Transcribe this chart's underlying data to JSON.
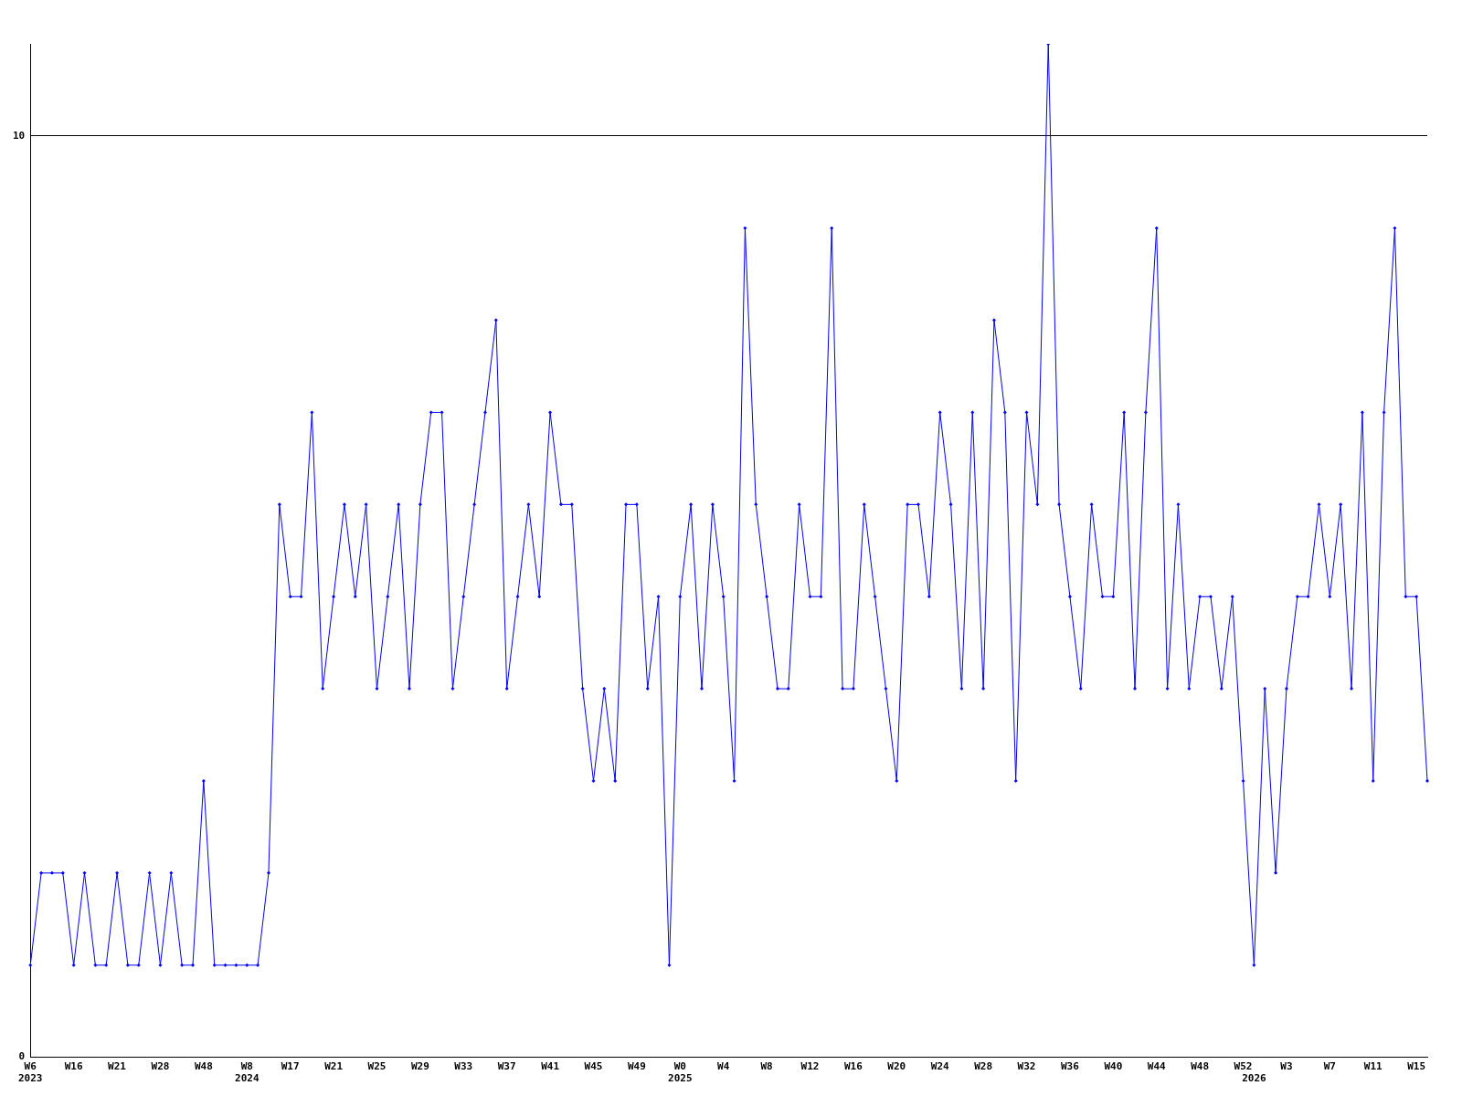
{
  "chart_data": {
    "type": "line",
    "categories": [
      "W6\n2023",
      null,
      null,
      null,
      "W16",
      null,
      null,
      null,
      "W21",
      null,
      null,
      null,
      "W28",
      null,
      null,
      null,
      "W48",
      null,
      null,
      null,
      "W8\n2024",
      null,
      null,
      null,
      "W17",
      null,
      null,
      null,
      "W21",
      null,
      null,
      null,
      "W25",
      null,
      null,
      null,
      "W29",
      null,
      null,
      null,
      "W33",
      null,
      null,
      null,
      "W37",
      null,
      null,
      null,
      "W41",
      null,
      null,
      null,
      "W45",
      null,
      null,
      null,
      "W49",
      null,
      null,
      null,
      "W0\n2025",
      null,
      null,
      null,
      "W4",
      null,
      null,
      null,
      "W8",
      null,
      null,
      null,
      "W12",
      null,
      null,
      null,
      "W16",
      null,
      null,
      null,
      "W20",
      null,
      null,
      null,
      "W24",
      null,
      null,
      null,
      "W28",
      null,
      null,
      null,
      "W32",
      null,
      null,
      null,
      "W36",
      null,
      null,
      null,
      "W40",
      null,
      null,
      null,
      "W44",
      null,
      null,
      null,
      "W48",
      null,
      null,
      null,
      "W52",
      "\n2026",
      null,
      null,
      "W3",
      null,
      null,
      null,
      "W7",
      null,
      null,
      null,
      "W11",
      null,
      null,
      null,
      "W15",
      null
    ],
    "series": [
      {
        "color": "#0000ff",
        "values": [
          1,
          2,
          2,
          2,
          1,
          2,
          1,
          1,
          2,
          1,
          1,
          2,
          1,
          2,
          1,
          1,
          3,
          1,
          1,
          1,
          1,
          1,
          2,
          6,
          5,
          5,
          7,
          4,
          5,
          6,
          5,
          6,
          4,
          5,
          6,
          4,
          6,
          7,
          7,
          4,
          5,
          6,
          7,
          8,
          4,
          5,
          6,
          5,
          7,
          6,
          6,
          4,
          3,
          4,
          3,
          6,
          6,
          4,
          5,
          1,
          5,
          6,
          4,
          6,
          5,
          3,
          9,
          6,
          5,
          4,
          4,
          6,
          5,
          5,
          9,
          4,
          4,
          6,
          5,
          4,
          3,
          6,
          6,
          5,
          7,
          6,
          4,
          7,
          4,
          8,
          7,
          3,
          7,
          6,
          11,
          6,
          5,
          4,
          6,
          5,
          5,
          7,
          4,
          7,
          9,
          4,
          6,
          4,
          5,
          5,
          4,
          5,
          3,
          1,
          4,
          2,
          4,
          5,
          5,
          6,
          5,
          6,
          4,
          7,
          3,
          7,
          9,
          5,
          5,
          3
        ]
      }
    ],
    "ylim": [
      0,
      11
    ],
    "yticks": [
      0,
      10
    ],
    "grid": "y",
    "marker": "diamond",
    "line_style": "solid",
    "legend": false
  }
}
